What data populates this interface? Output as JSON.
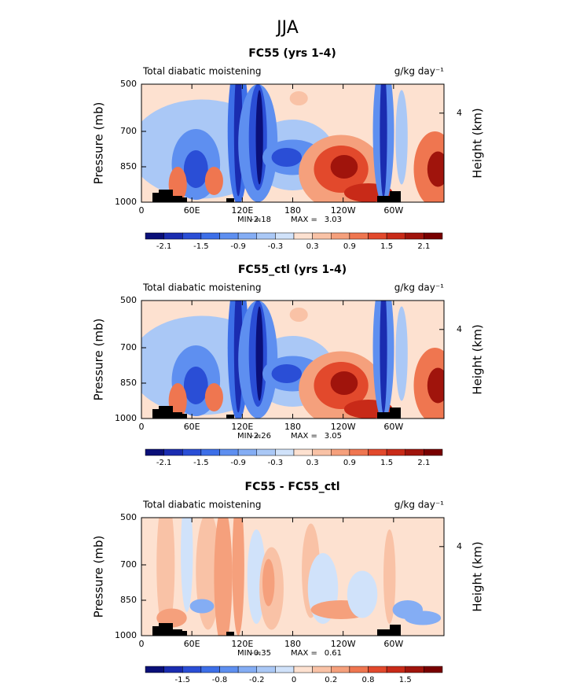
{
  "title": "JJA",
  "chart_data": [
    {
      "type": "contour",
      "title": "FC55 (yrs 1-4)",
      "subtitle": "Total diabatic moistening",
      "units": "g/kg day⁻¹",
      "ylabel": "Pressure (mb)",
      "y2label": "Height (km)",
      "xlim": [
        0,
        360
      ],
      "xticks": [
        0,
        {
          "value": 60,
          "label": "60E"
        },
        {
          "value": 120,
          "label": "120E"
        },
        180,
        {
          "value": 240,
          "label": "120W"
        },
        {
          "value": 300,
          "label": "60W"
        }
      ],
      "ylim": [
        1000,
        500
      ],
      "yticks": [
        500,
        700,
        850,
        1000
      ],
      "y2lim": [
        0,
        5.3
      ],
      "y2ticks": [
        4
      ],
      "min_label": "MIN =",
      "min": -2.18,
      "max_label": "MAX =",
      "max": 3.03,
      "colorbar_levels": [
        -2.1,
        -1.5,
        -0.9,
        -0.3,
        0.3,
        0.9,
        1.5,
        2.1
      ],
      "colors": [
        "#0a0f78",
        "#1a2cb0",
        "#2a4ed6",
        "#3d6fe8",
        "#5e8ff0",
        "#84adf4",
        "#aac8f6",
        "#d0e2fa",
        "#fde1d0",
        "#f9c2a6",
        "#f5a07c",
        "#ef7650",
        "#e2492c",
        "#c82a18",
        "#a0140c",
        "#780000"
      ]
    },
    {
      "type": "contour",
      "title": "FC55_ctl (yrs 1-4)",
      "subtitle": "Total diabatic moistening",
      "units": "g/kg day⁻¹",
      "ylabel": "Pressure (mb)",
      "y2label": "Height (km)",
      "xlim": [
        0,
        360
      ],
      "xticks": [
        0,
        {
          "value": 60,
          "label": "60E"
        },
        {
          "value": 120,
          "label": "120E"
        },
        180,
        {
          "value": 240,
          "label": "120W"
        },
        {
          "value": 300,
          "label": "60W"
        }
      ],
      "ylim": [
        1000,
        500
      ],
      "yticks": [
        500,
        700,
        850,
        1000
      ],
      "y2lim": [
        0,
        5.3
      ],
      "y2ticks": [
        4
      ],
      "min_label": "MIN =",
      "min": -2.26,
      "max_label": "MAX =",
      "max": 3.05,
      "colorbar_levels": [
        -2.1,
        -1.5,
        -0.9,
        -0.3,
        0.3,
        0.9,
        1.5,
        2.1
      ],
      "colors": [
        "#0a0f78",
        "#1a2cb0",
        "#2a4ed6",
        "#3d6fe8",
        "#5e8ff0",
        "#84adf4",
        "#aac8f6",
        "#d0e2fa",
        "#fde1d0",
        "#f9c2a6",
        "#f5a07c",
        "#ef7650",
        "#e2492c",
        "#c82a18",
        "#a0140c",
        "#780000"
      ]
    },
    {
      "type": "contour",
      "title": "FC55 - FC55_ctl",
      "subtitle": "Total diabatic moistening",
      "units": "g/kg day⁻¹",
      "ylabel": "Pressure (mb)",
      "y2label": "Height (km)",
      "xlim": [
        0,
        360
      ],
      "xticks": [
        0,
        {
          "value": 60,
          "label": "60E"
        },
        {
          "value": 120,
          "label": "120E"
        },
        180,
        {
          "value": 240,
          "label": "120W"
        },
        {
          "value": 300,
          "label": "60W"
        }
      ],
      "ylim": [
        1000,
        500
      ],
      "yticks": [
        500,
        700,
        850,
        1000
      ],
      "y2lim": [
        0,
        5.3
      ],
      "y2ticks": [
        4
      ],
      "min_label": "MIN =",
      "min": -0.35,
      "max_label": "MAX =",
      "max": 0.61,
      "colorbar_levels": [
        -1.5,
        -0.8,
        -0.2,
        0,
        0.2,
        0.8,
        1.5
      ],
      "colors": [
        "#0a0f78",
        "#1a2cb0",
        "#2a4ed6",
        "#3d6fe8",
        "#5e8ff0",
        "#84adf4",
        "#aac8f6",
        "#d0e2fa",
        "#fde1d0",
        "#f9c2a6",
        "#f5a07c",
        "#ef7650",
        "#e2492c",
        "#c82a18",
        "#a0140c",
        "#780000"
      ]
    }
  ]
}
